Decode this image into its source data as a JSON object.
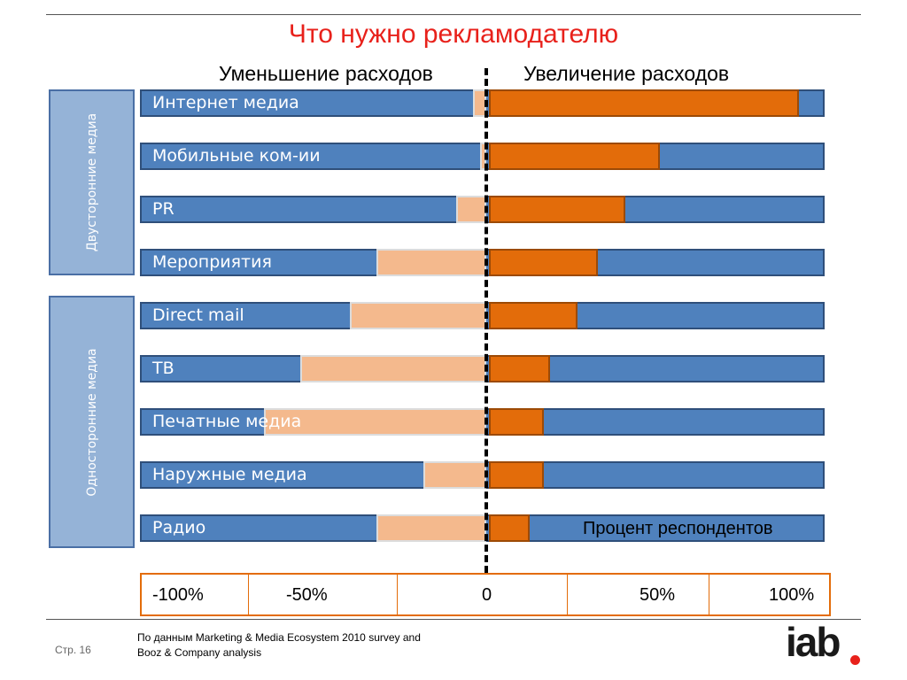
{
  "title": "Что нужно рекламодателю",
  "header_left": "Уменьшение расходов",
  "header_right": "Увеличение расходов",
  "groups": [
    {
      "label": "Двусторонние медиа"
    },
    {
      "label": "Односторонние медиа"
    }
  ],
  "respondents_label": "Процент респондентов",
  "source": [
    "По данным Marketing & Media Ecosystem 2010 survey and",
    "Booz & Company analysis"
  ],
  "page_number": "Стр. 16",
  "logo_text": "iab",
  "colors": {
    "title": "#e8211b",
    "row_background": "#4f81bd",
    "decrease": "#f4b98d",
    "increase": "#e36c0a"
  },
  "chart_data": {
    "type": "bar",
    "orientation": "horizontal-diverging",
    "categories": [
      "Интернет медиа",
      "Мобильные ком-ии",
      "PR",
      "Мероприятия",
      "Direct mail",
      "ТВ",
      "Печатные медиа",
      "Наружные медиа",
      "Радио"
    ],
    "series": [
      {
        "name": "Уменьшение расходов",
        "values": [
          -4,
          -2,
          -9,
          -33,
          -41,
          -56,
          -67,
          -19,
          -33
        ]
      },
      {
        "name": "Увеличение расходов",
        "values": [
          91,
          50,
          40,
          32,
          26,
          18,
          16,
          16,
          12
        ]
      }
    ],
    "xlabel": "Процент респондентов",
    "xlim": [
      -100,
      100
    ],
    "ticks": [
      "-100%",
      "-50%",
      "0",
      "50%",
      "100%"
    ],
    "tick_values": [
      -100,
      -50,
      0,
      50,
      100
    ],
    "grid": false
  }
}
